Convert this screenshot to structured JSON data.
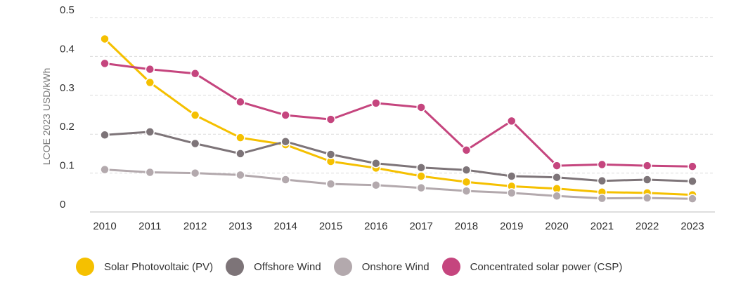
{
  "chart_data": {
    "type": "line",
    "title": "",
    "xlabel": "",
    "ylabel": "LCOE 2023 USD/kWh",
    "x": [
      2010,
      2011,
      2012,
      2013,
      2014,
      2015,
      2016,
      2017,
      2018,
      2019,
      2020,
      2021,
      2022,
      2023
    ],
    "ylim": [
      0,
      0.5
    ],
    "yticks": [
      "0",
      "0.1",
      "0.2",
      "0.3",
      "0.4",
      "0.5"
    ],
    "grid": true,
    "legend_position": "bottom",
    "series": [
      {
        "name": "Solar Photovoltaic (PV)",
        "color": "#f5c000",
        "values": [
          0.445,
          0.333,
          0.249,
          0.191,
          0.173,
          0.13,
          0.113,
          0.092,
          0.077,
          0.066,
          0.06,
          0.051,
          0.049,
          0.044
        ]
      },
      {
        "name": "Offshore Wind",
        "color": "#7d7478",
        "values": [
          0.198,
          0.206,
          0.176,
          0.15,
          0.181,
          0.148,
          0.125,
          0.114,
          0.108,
          0.092,
          0.089,
          0.08,
          0.083,
          0.079
        ]
      },
      {
        "name": "Onshore Wind",
        "color": "#b3a9ad",
        "values": [
          0.109,
          0.102,
          0.1,
          0.095,
          0.083,
          0.072,
          0.069,
          0.062,
          0.054,
          0.049,
          0.041,
          0.035,
          0.036,
          0.034
        ]
      },
      {
        "name": "Concentrated solar power (CSP)",
        "color": "#c5457e",
        "values": [
          0.382,
          0.367,
          0.356,
          0.283,
          0.249,
          0.238,
          0.28,
          0.269,
          0.159,
          0.234,
          0.119,
          0.122,
          0.119,
          0.117
        ]
      }
    ]
  }
}
